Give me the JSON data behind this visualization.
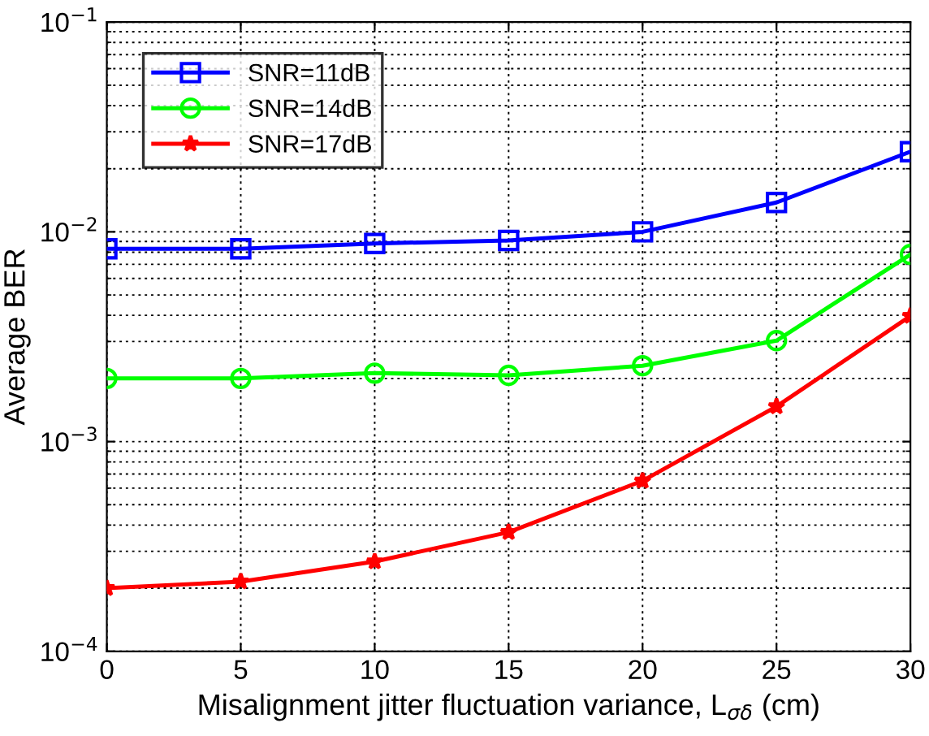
{
  "chart_data": {
    "type": "line",
    "xlabel": "Misalignment jitter fluctuation variance, L$_{σδ}$ (cm)",
    "ylabel": "Average BER",
    "x": [
      0,
      5,
      10,
      15,
      20,
      25,
      30
    ],
    "series": [
      {
        "name": "SNR=11dB",
        "color": "#0000ff",
        "marker": "square",
        "values": [
          0.0083,
          0.0083,
          0.0088,
          0.0091,
          0.01,
          0.0138,
          0.0241
        ]
      },
      {
        "name": "SNR=14dB",
        "color": "#00ff00",
        "marker": "circle",
        "values": [
          0.002,
          0.002,
          0.00212,
          0.00207,
          0.0023,
          0.00303,
          0.0078
        ]
      },
      {
        "name": "SNR=17dB",
        "color": "#ff0000",
        "marker": "star",
        "values": [
          0.0002,
          0.000215,
          0.000268,
          0.00037,
          0.00065,
          0.00147,
          0.00397
        ]
      }
    ],
    "log": "y",
    "xlim": [
      0,
      30
    ],
    "ylim": [
      0.0001,
      0.1
    ],
    "xticks": [
      0,
      5,
      10,
      15,
      20,
      25,
      30
    ],
    "yticks": [
      {
        "value": 0.0001,
        "label": "10$^{−4}$"
      },
      {
        "value": 0.001,
        "label": "10$^{−3}$"
      },
      {
        "value": 0.01,
        "label": "10$^{−2}$"
      },
      {
        "value": 0.1,
        "label": "10$^{−1}$"
      }
    ],
    "grid": true,
    "legend": "top left",
    "line_style": "solid"
  }
}
